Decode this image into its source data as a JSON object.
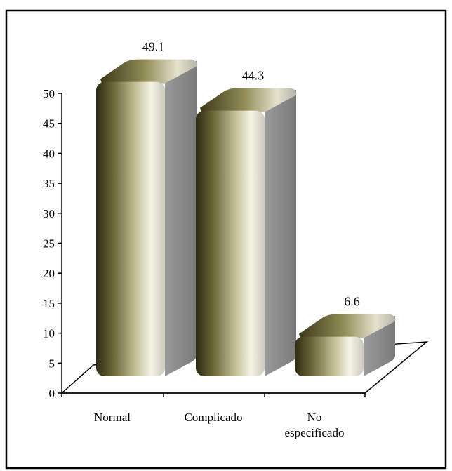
{
  "chart_data": {
    "type": "bar",
    "categories": [
      "Normal",
      "Complicado",
      "No especificado"
    ],
    "category_lines": [
      [
        "Normal"
      ],
      [
        "Complicado"
      ],
      [
        "No",
        "especificado"
      ]
    ],
    "values": [
      49.1,
      44.3,
      6.6
    ],
    "value_labels": [
      "49.1",
      "44.3",
      "6.6"
    ],
    "ylim": [
      0,
      50
    ],
    "yticks": [
      "0",
      "5",
      "10",
      "15",
      "20",
      "25",
      "30",
      "35",
      "40",
      "45",
      "50"
    ],
    "grid": false,
    "legend": "none",
    "colors": {
      "bar_dark": "#2e2a12",
      "bar_mid": "#8f8a55",
      "bar_light": "#f5f4e6",
      "bar_side": "#8a8a8a",
      "axis": "#000000"
    }
  }
}
